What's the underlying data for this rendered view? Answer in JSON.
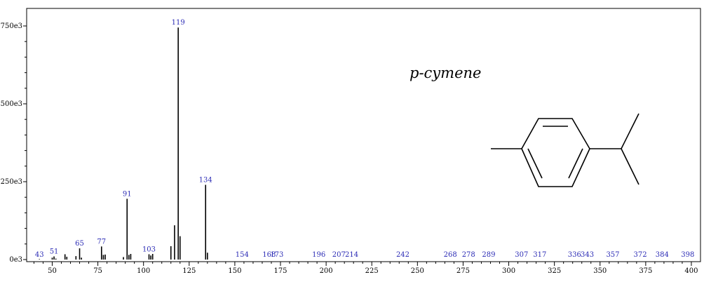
{
  "compound_name": "p-cymene",
  "chart_data": {
    "type": "bar",
    "title": "",
    "xlabel": "",
    "ylabel": "",
    "xlim": [
      36,
      405
    ],
    "ylim": [
      0,
      790000
    ],
    "x_ticks": [
      50,
      75,
      100,
      125,
      150,
      175,
      200,
      225,
      250,
      275,
      300,
      325,
      350,
      375,
      400
    ],
    "y_ticks": [
      {
        "value": 0,
        "label": "0e3"
      },
      {
        "value": 250000,
        "label": "250e3"
      },
      {
        "value": 500000,
        "label": "500e3"
      },
      {
        "value": 750000,
        "label": "750e3"
      }
    ],
    "peaks": [
      {
        "mz": 43,
        "intensity": 1500
      },
      {
        "mz": 50,
        "intensity": 6000
      },
      {
        "mz": 51,
        "intensity": 10000
      },
      {
        "mz": 52,
        "intensity": 3000
      },
      {
        "mz": 57,
        "intensity": 17000
      },
      {
        "mz": 58,
        "intensity": 9000
      },
      {
        "mz": 63,
        "intensity": 11000
      },
      {
        "mz": 65,
        "intensity": 36000
      },
      {
        "mz": 66,
        "intensity": 6000
      },
      {
        "mz": 77,
        "intensity": 42000
      },
      {
        "mz": 78,
        "intensity": 15000
      },
      {
        "mz": 79,
        "intensity": 16000
      },
      {
        "mz": 89,
        "intensity": 8000
      },
      {
        "mz": 91,
        "intensity": 195000
      },
      {
        "mz": 92,
        "intensity": 15000
      },
      {
        "mz": 93,
        "intensity": 18000
      },
      {
        "mz": 103,
        "intensity": 17000
      },
      {
        "mz": 104,
        "intensity": 13000
      },
      {
        "mz": 105,
        "intensity": 18000
      },
      {
        "mz": 115,
        "intensity": 43000
      },
      {
        "mz": 117,
        "intensity": 110000
      },
      {
        "mz": 119,
        "intensity": 745000
      },
      {
        "mz": 120,
        "intensity": 75000
      },
      {
        "mz": 134,
        "intensity": 240000
      },
      {
        "mz": 135,
        "intensity": 22000
      }
    ],
    "peak_labels": [
      {
        "mz": 43,
        "label": "43",
        "intensity": 0
      },
      {
        "mz": 51,
        "label": "51",
        "intensity": 10000
      },
      {
        "mz": 65,
        "label": "65",
        "intensity": 36000
      },
      {
        "mz": 77,
        "label": "77",
        "intensity": 42000
      },
      {
        "mz": 91,
        "label": "91",
        "intensity": 195000
      },
      {
        "mz": 103,
        "label": "103",
        "intensity": 17000
      },
      {
        "mz": 119,
        "label": "119",
        "intensity": 745000
      },
      {
        "mz": 134,
        "label": "134",
        "intensity": 240000
      },
      {
        "mz": 154,
        "label": "154",
        "intensity": 0
      },
      {
        "mz": 168,
        "label": "168",
        "intensity": 0
      },
      {
        "mz": 173,
        "label": "173",
        "intensity": 0
      },
      {
        "mz": 196,
        "label": "196",
        "intensity": 0
      },
      {
        "mz": 207,
        "label": "207",
        "intensity": 0
      },
      {
        "mz": 214,
        "label": "214",
        "intensity": 0
      },
      {
        "mz": 242,
        "label": "242",
        "intensity": 0
      },
      {
        "mz": 268,
        "label": "268",
        "intensity": 0
      },
      {
        "mz": 278,
        "label": "278",
        "intensity": 0
      },
      {
        "mz": 289,
        "label": "289",
        "intensity": 0
      },
      {
        "mz": 307,
        "label": "307",
        "intensity": 0
      },
      {
        "mz": 317,
        "label": "317",
        "intensity": 0
      },
      {
        "mz": 336,
        "label": "336",
        "intensity": 0
      },
      {
        "mz": 343,
        "label": "343",
        "intensity": 0
      },
      {
        "mz": 357,
        "label": "357",
        "intensity": 0
      },
      {
        "mz": 372,
        "label": "372",
        "intensity": 0
      },
      {
        "mz": 384,
        "label": "384",
        "intensity": 0
      },
      {
        "mz": 398,
        "label": "398",
        "intensity": 0
      }
    ],
    "peak_label_color": "#2b2bb5",
    "bar_color": "#000000"
  }
}
